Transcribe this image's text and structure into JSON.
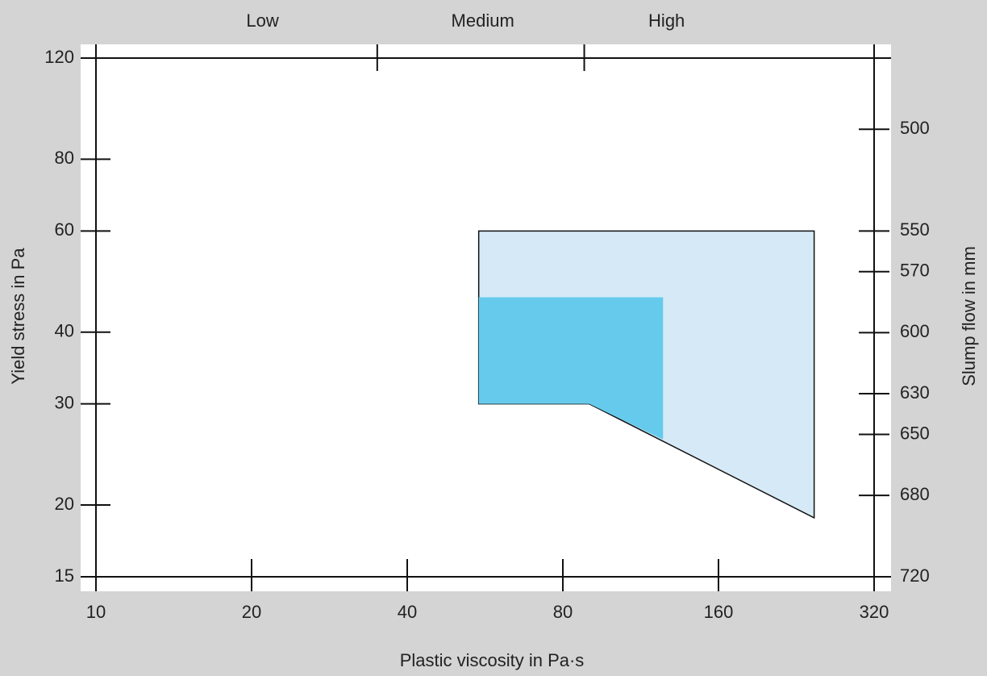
{
  "chart_data": {
    "type": "area",
    "x_label": "Plastic viscosity in Pa·s",
    "y_label": "Yield stress in Pa",
    "y2_label": "Slump flow in mm",
    "x_scale": "log",
    "y_scale": "log",
    "xlim": [
      10,
      320
    ],
    "xticks": [
      10,
      20,
      40,
      80,
      160,
      320
    ],
    "ylim": [
      15,
      120
    ],
    "yticks": [
      15,
      20,
      30,
      40,
      60,
      80,
      120
    ],
    "y2lim": [
      720,
      465
    ],
    "y2ticks": [
      500,
      550,
      570,
      600,
      630,
      650,
      680,
      720
    ],
    "top_categories": [
      {
        "value": 21,
        "label": "Low"
      },
      {
        "value": 56,
        "label": "Medium"
      },
      {
        "value": 127,
        "label": "High"
      }
    ],
    "top_ticks": [
      35,
      88
    ],
    "series": [
      {
        "color": "#d5eaf6",
        "x": [
          55,
          245,
          245,
          90,
          55
        ],
        "values": [
          60,
          60,
          19,
          30,
          30
        ]
      },
      {
        "color": "#66caed",
        "x": [
          55,
          125,
          125,
          90,
          55
        ],
        "values": [
          46,
          46,
          26,
          30,
          30
        ]
      }
    ]
  }
}
